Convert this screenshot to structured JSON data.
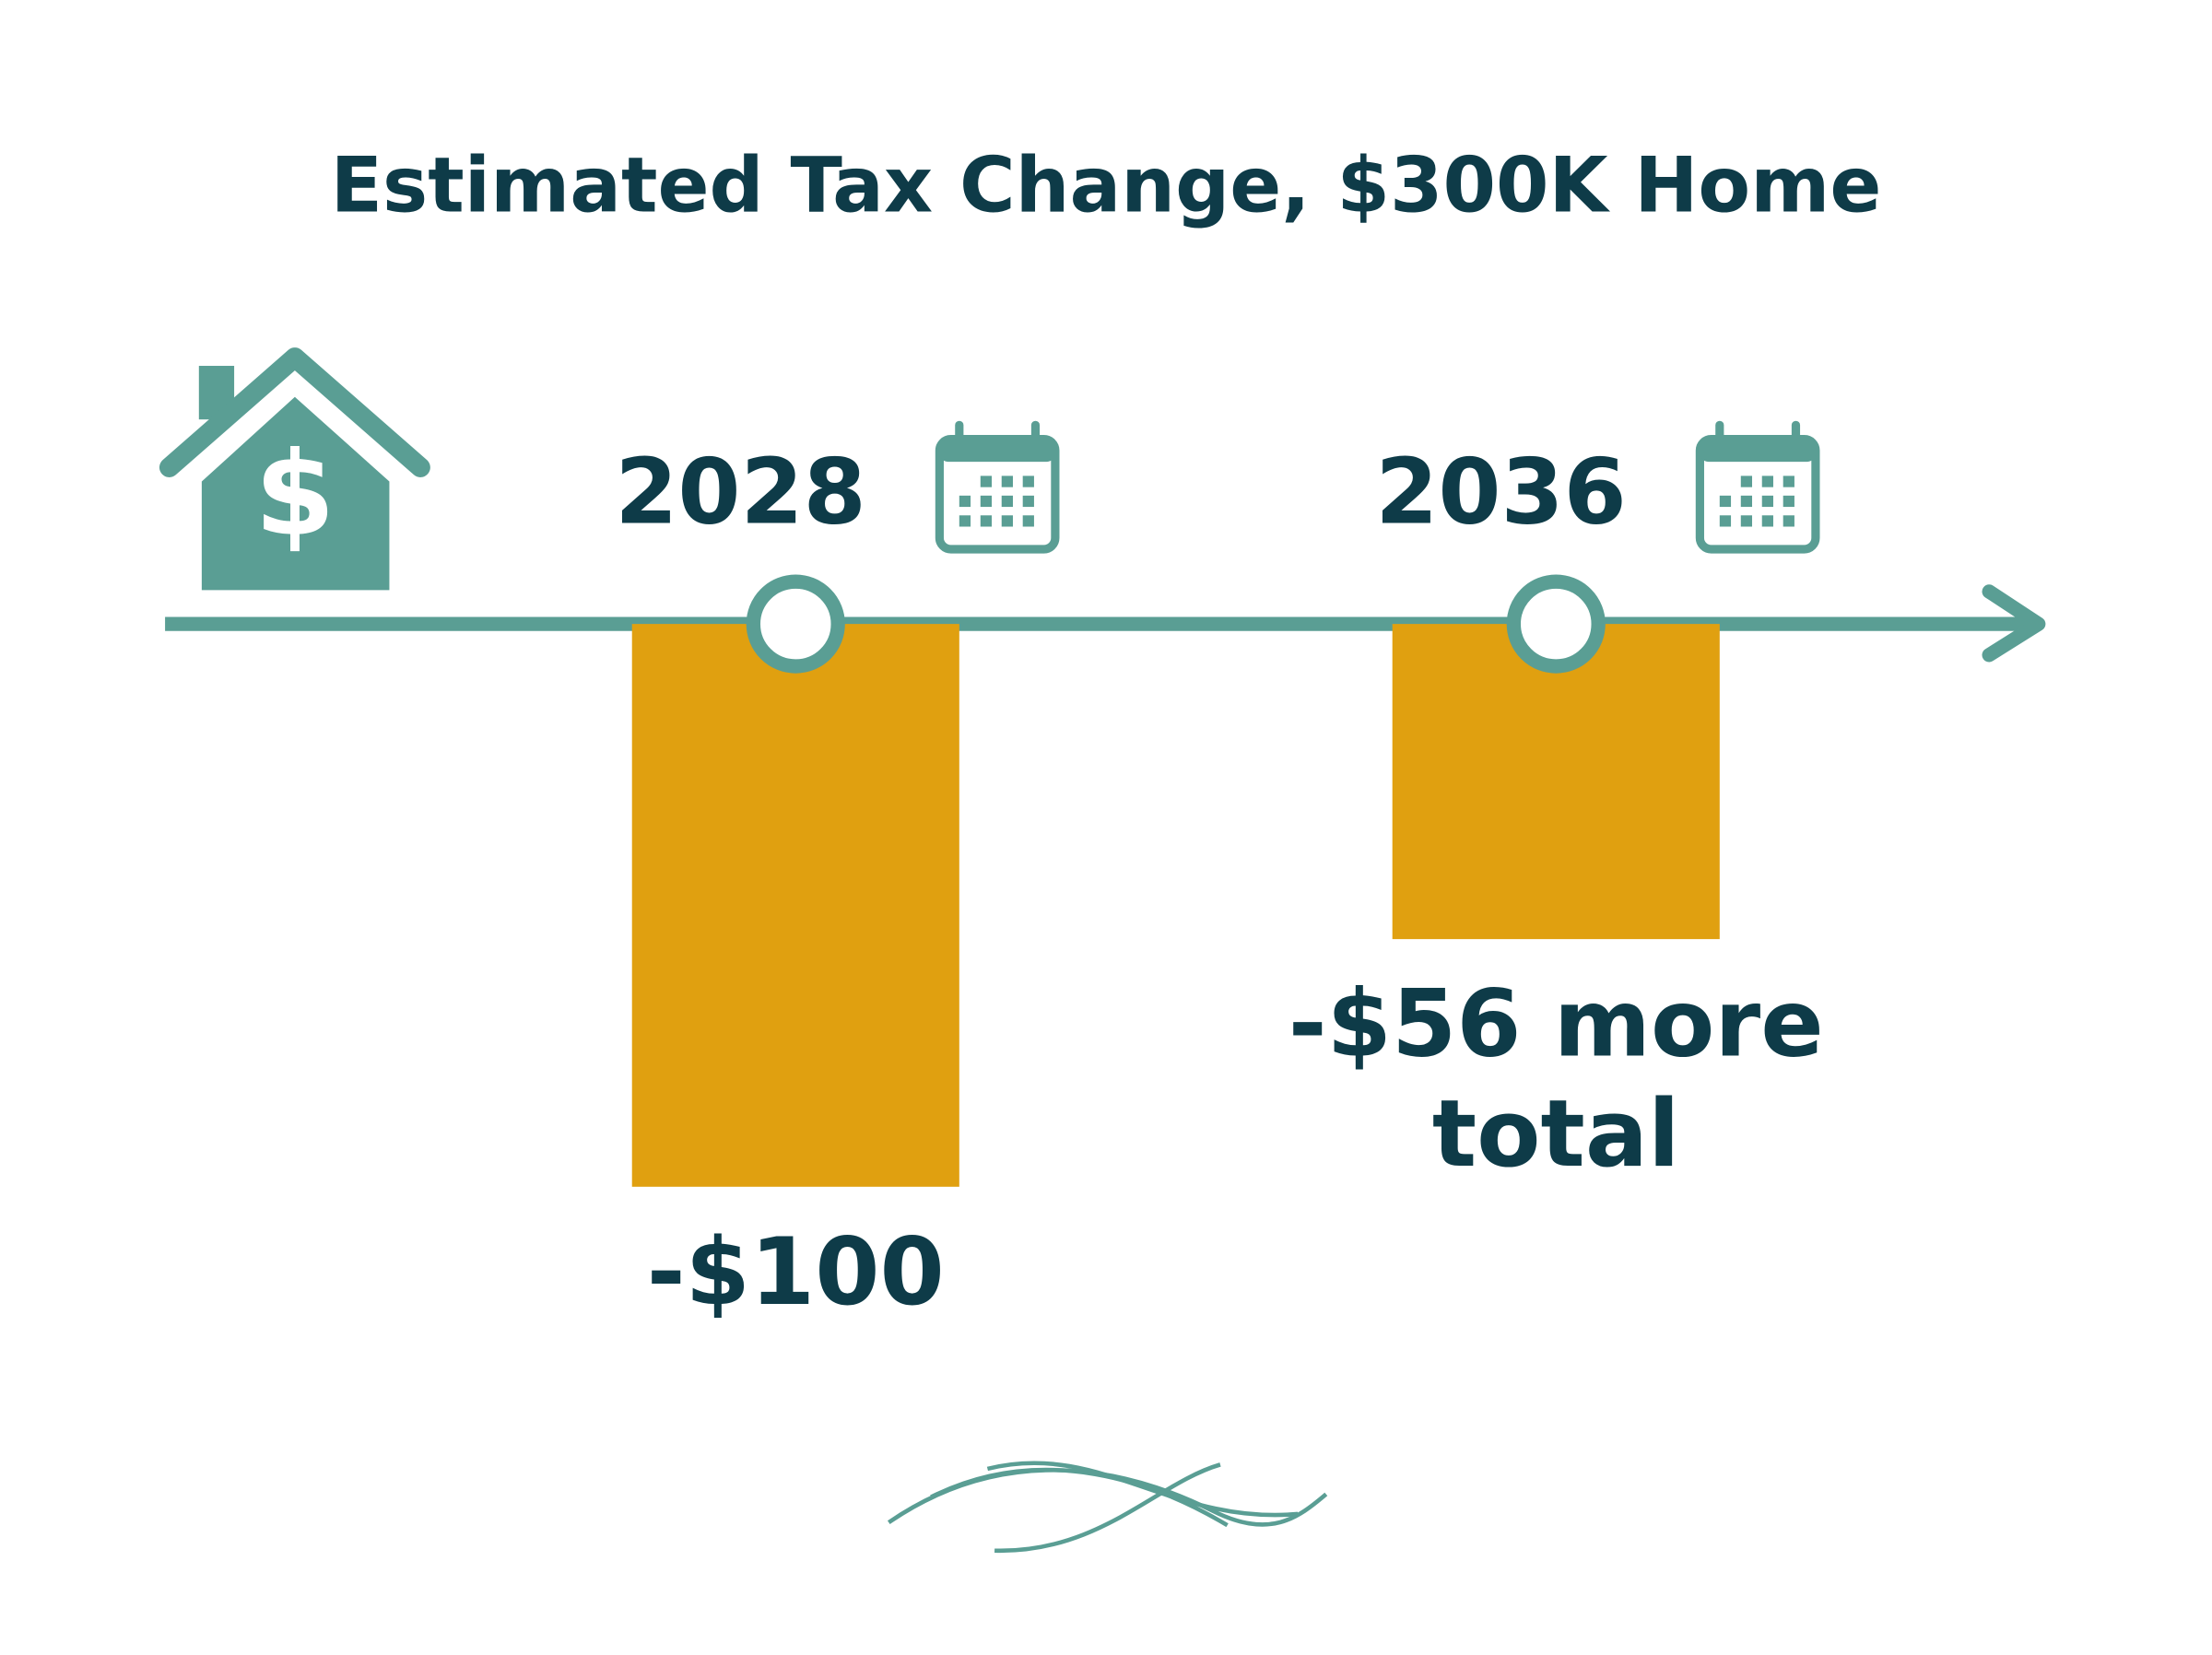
{
  "chart_data": {
    "type": "bar",
    "title": "Estimated Tax Change, $300K Home",
    "categories": [
      "2028",
      "2036"
    ],
    "values": [
      -100,
      -56
    ],
    "value_labels": [
      "-$100",
      "-$56 more total"
    ],
    "color": "#e0a010"
  }
}
